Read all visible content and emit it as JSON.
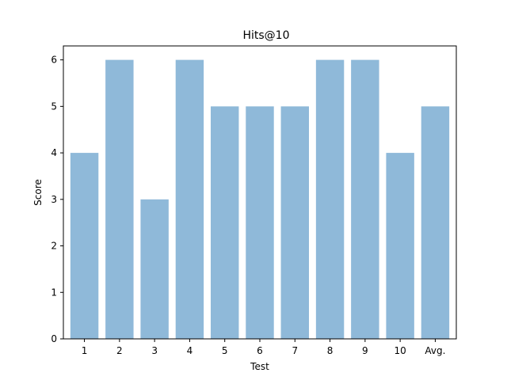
{
  "chart_data": {
    "type": "bar",
    "title": "Hits@10",
    "xlabel": "Test",
    "ylabel": "Score",
    "categories": [
      "1",
      "2",
      "3",
      "4",
      "5",
      "6",
      "7",
      "8",
      "9",
      "10",
      "Avg."
    ],
    "values": [
      4,
      6,
      3,
      6,
      5,
      5,
      5,
      6,
      6,
      4,
      5
    ],
    "ylim": [
      0,
      6.3
    ],
    "yticks": [
      0,
      1,
      2,
      3,
      4,
      5,
      6
    ],
    "grid": false,
    "bar_color": "#8fb9d9"
  }
}
